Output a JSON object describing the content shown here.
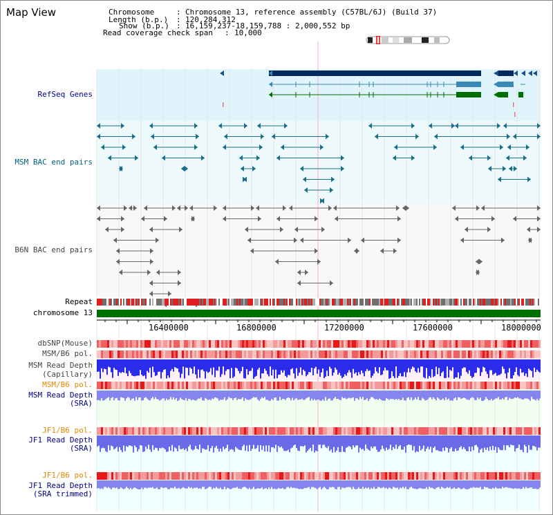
{
  "title": "Map View",
  "info": {
    "chromosome_label": "Chromosome",
    "chromosome_value": "Chromosome 13, reference assembly (C57BL/6J) (Build 37)",
    "length_label": "Length (b.p.)",
    "length_value": "120,284,312",
    "show_label": "Show (b.p.)",
    "show_value": "16,159,237-18,159,788 : 2,000,552 bp",
    "coverage_label": "Read coverage check span",
    "coverage_value": "10,000"
  },
  "tracks": {
    "refseq": "RefSeq Genes",
    "msm_bac": "MSM BAC end pairs",
    "b6n_bac": "B6N BAC end pairs",
    "repeat": "Repeat",
    "chrom": "chromosome 13",
    "dbsnp": "dbSNP(Mouse)",
    "msm_b6_pol_1": "MSM/B6 pol.",
    "msm_depth_cap_1": "MSM Read Depth",
    "msm_depth_cap_2": "(Capillary)",
    "msm_b6_pol_2": "MSM/B6 pol.",
    "msm_depth_sra_1": "MSM Read Depth",
    "msm_depth_sra_2": "(SRA)",
    "jf1_b6_pol_1": "JF1/B6 pol.",
    "jf1_depth_1": "JF1 Read Depth",
    "jf1_depth_2": "(SRA)",
    "jf1_b6_pol_2": "JF1/B6 pol.",
    "jf1_trim_1": "JF1 Read Depth",
    "jf1_trim_2": "(SRA trimmed)"
  },
  "axis": {
    "ticks": [
      "16400000",
      "16800000",
      "17200000",
      "17600000",
      "18000000"
    ]
  },
  "colors": {
    "refseq_bg": "#e0f4fc",
    "bac_bg": "#eef9fb",
    "gene_dark": "#002a5c",
    "gene_mid": "#3a88b8",
    "gene_green": "#006e00",
    "msm_bac": "#1a6e8c",
    "b6n_bac": "#666666",
    "depth_blue": "#2b2bea",
    "depth_light": "#8585f0",
    "pol_red": "#f06060",
    "chrom_green": "#006e00"
  }
}
